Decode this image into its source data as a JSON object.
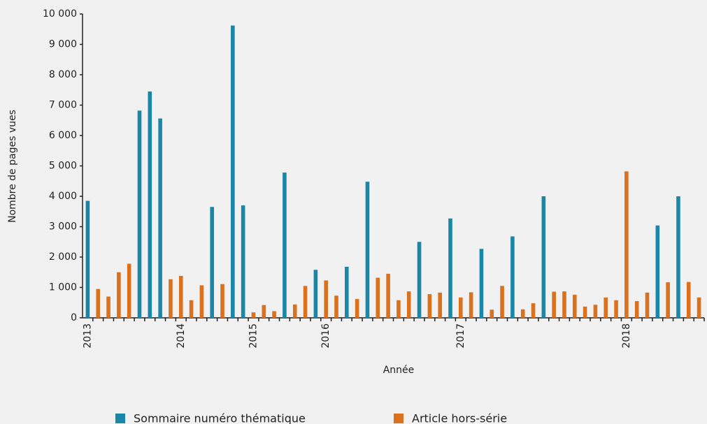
{
  "chart_data": {
    "type": "bar",
    "x_label": "Année",
    "y_label": "Nombre de pages vues",
    "categories": [
      "2013",
      null,
      null,
      null,
      null,
      null,
      null,
      null,
      null,
      "2014",
      null,
      null,
      null,
      null,
      null,
      null,
      "2015",
      null,
      null,
      null,
      null,
      null,
      null,
      "2016",
      null,
      null,
      null,
      null,
      null,
      null,
      null,
      null,
      null,
      null,
      null,
      null,
      "2017",
      null,
      null,
      null,
      null,
      null,
      null,
      null,
      null,
      null,
      null,
      null,
      null,
      null,
      null,
      null,
      "2018",
      null,
      null,
      null,
      null,
      null,
      null,
      null
    ],
    "series": [
      {
        "name": "Sommaire numéro thématique",
        "color": "#1a87a8",
        "values": [
          3850,
          null,
          null,
          null,
          null,
          6820,
          7450,
          6560,
          null,
          null,
          null,
          null,
          3650,
          null,
          9620,
          3700,
          null,
          null,
          null,
          4780,
          null,
          null,
          1580,
          null,
          null,
          1680,
          null,
          4480,
          null,
          null,
          null,
          null,
          2500,
          null,
          null,
          3270,
          null,
          null,
          2270,
          null,
          null,
          2680,
          null,
          null,
          4000,
          null,
          null,
          null,
          null,
          null,
          null,
          null,
          null,
          null,
          null,
          3040,
          null,
          4000,
          null,
          null
        ]
      },
      {
        "name": "Article hors-série",
        "color": "#d9711f",
        "values": [
          null,
          950,
          700,
          1500,
          1780,
          null,
          null,
          null,
          1270,
          1380,
          580,
          1070,
          null,
          1110,
          null,
          null,
          180,
          420,
          220,
          null,
          440,
          1050,
          null,
          1230,
          730,
          null,
          620,
          null,
          1320,
          1450,
          580,
          870,
          null,
          780,
          830,
          null,
          670,
          840,
          null,
          270,
          1050,
          null,
          280,
          480,
          null,
          860,
          870,
          760,
          370,
          430,
          670,
          580,
          4820,
          550,
          830,
          null,
          1170,
          null,
          1180,
          670
        ]
      }
    ],
    "ylim": [
      0,
      10000
    ],
    "yticks": [
      0,
      {
        "value": 1000,
        "label": "1 000"
      },
      {
        "value": 2000,
        "label": "2 000"
      },
      {
        "value": 3000,
        "label": "3 000"
      },
      {
        "value": 4000,
        "label": "4 000"
      },
      {
        "value": 5000,
        "label": "5 000"
      },
      {
        "value": 6000,
        "label": "6 000"
      },
      {
        "value": 7000,
        "label": "7 000"
      },
      {
        "value": 8000,
        "label": "8 000"
      },
      {
        "value": 9000,
        "label": "9 000"
      },
      {
        "value": 10000,
        "label": "10 000"
      }
    ],
    "grid": false
  }
}
